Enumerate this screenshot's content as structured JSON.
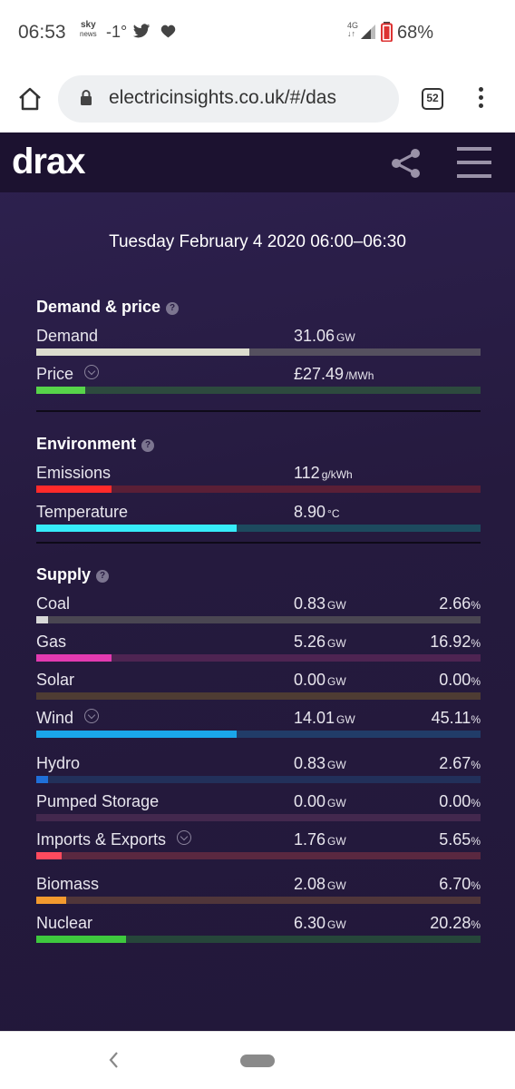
{
  "status_bar": {
    "time": "06:53",
    "sky_top": "sky",
    "sky_bottom": "news",
    "temperature": "-1°",
    "network": "4G",
    "battery_pct": "68%",
    "icons": [
      "twitter-icon",
      "heart-icon",
      "signal-icon",
      "battery-icon"
    ]
  },
  "browser": {
    "url": "electricinsights.co.uk/#/das",
    "tab_count": "52"
  },
  "app": {
    "logo": "drax",
    "date_title": "Tuesday February 4 2020 06:00–06:30"
  },
  "sections": {
    "demand": {
      "title": "Demand & price",
      "rows": [
        {
          "label": "Demand",
          "value": "31.06",
          "unit": "GW",
          "fill": 0.48,
          "color": "#dcdcce",
          "track": "#55505f"
        },
        {
          "label": "Price",
          "value": "£27.49",
          "unit": "/MWh",
          "fill": 0.11,
          "color": "#57d44a",
          "track": "#2d4a3e"
        }
      ]
    },
    "environment": {
      "title": "Environment",
      "rows": [
        {
          "label": "Emissions",
          "value": "112",
          "unit": "g/kWh",
          "fill": 0.17,
          "color": "#ff2a2a",
          "track": "#5a1f36"
        },
        {
          "label": "Temperature",
          "value": "8.90",
          "unit": "°C",
          "fill": 0.45,
          "color": "#36ecf9",
          "track": "#1d4a5e"
        }
      ]
    },
    "supply": {
      "title": "Supply",
      "rows": [
        {
          "label": "Coal",
          "value": "0.83",
          "unit": "GW",
          "pct": "2.66",
          "fill": 0.0266,
          "color": "#d8d8d8",
          "track": "#4a4652"
        },
        {
          "label": "Gas",
          "value": "5.26",
          "unit": "GW",
          "pct": "16.92",
          "fill": 0.1692,
          "color": "#e23ab0",
          "track": "#4e2452"
        },
        {
          "label": "Solar",
          "value": "0.00",
          "unit": "GW",
          "pct": "0.00",
          "fill": 0.0,
          "color": "#f2b13a",
          "track": "#4e3c33"
        },
        {
          "label": "Wind",
          "value": "14.01",
          "unit": "GW",
          "pct": "45.11",
          "fill": 0.4511,
          "color": "#1aa6ea",
          "track": "#213c68"
        },
        {
          "label": "Hydro",
          "value": "0.83",
          "unit": "GW",
          "pct": "2.67",
          "fill": 0.0267,
          "color": "#1f6fd8",
          "track": "#22305a"
        },
        {
          "label": "Pumped Storage",
          "value": "0.00",
          "unit": "GW",
          "pct": "0.00",
          "fill": 0.0,
          "color": "#b455c2",
          "track": "#43284e"
        },
        {
          "label": "Imports & Exports",
          "value": "1.76",
          "unit": "GW",
          "pct": "5.65",
          "fill": 0.0565,
          "color": "#ff4a5e",
          "track": "#5a2840"
        },
        {
          "label": "Biomass",
          "value": "2.08",
          "unit": "GW",
          "pct": "6.70",
          "fill": 0.067,
          "color": "#f39a2e",
          "track": "#50363a"
        },
        {
          "label": "Nuclear",
          "value": "6.30",
          "unit": "GW",
          "pct": "20.28",
          "fill": 0.2028,
          "color": "#3ec83e",
          "track": "#26463a"
        }
      ]
    }
  },
  "pct_unit": "%"
}
